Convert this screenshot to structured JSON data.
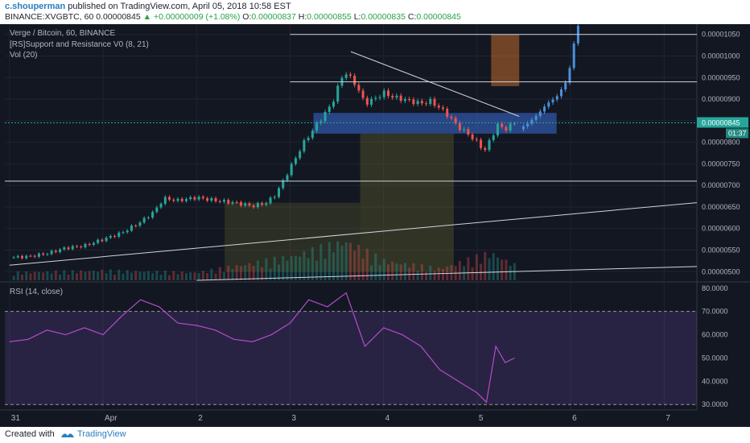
{
  "header": {
    "author": "c.shouperman",
    "published_text": "published on TradingView.com, April 05, 2018 10:58 EST",
    "symbol": "BINANCE:XVGBTC, 60",
    "last": "0.00000845",
    "change": "+0.00000009 (+1.08%)",
    "o_label": "O:",
    "o": "0.00000837",
    "h_label": "H:",
    "h": "0.00000855",
    "l_label": "L:",
    "l": "0.00000835",
    "c_label": "C:",
    "c": "0.00000845"
  },
  "legend": {
    "title": "Verge / Bitcoin, 60, BINANCE",
    "indicator": "[RS]Support and Resistance V0 (8, 21)",
    "volume": "Vol (20)",
    "rsi": "RSI (14, close)"
  },
  "price_label": {
    "value": "0.00000845",
    "countdown": "01:37"
  },
  "footer": {
    "created_with": "Created with",
    "brand": "TradingView"
  },
  "colors": {
    "background": "#131722",
    "up": "#26a69a",
    "down": "#ef5350",
    "forecast": "#4a90d9",
    "rsi_line": "#b34cc9",
    "sr_zone": "#3b6bd6"
  },
  "chart_data": [
    {
      "type": "candlestick",
      "title": "Verge / Bitcoin, 60, BINANCE",
      "ylim": [
        4.8e-06,
        1.07e-05
      ],
      "y_ticks": [
        "0.00001050",
        "0.00001000",
        "0.00000950",
        "0.00000900",
        "0.00000850",
        "0.00000800",
        "0.00000750",
        "0.00000700",
        "0.00000650",
        "0.00000600",
        "0.00000550",
        "0.00000500"
      ],
      "x_ticks": [
        "31",
        "Apr",
        "2",
        "3",
        "4",
        "5",
        "6",
        "7"
      ],
      "x_days": [
        0,
        1,
        2,
        3,
        4,
        5,
        6,
        7
      ],
      "xlim": [
        -0.05,
        7.35
      ],
      "close_path": [
        [
          0.0,
          5.33e-06
        ],
        [
          0.2,
          5.35e-06
        ],
        [
          0.4,
          5.42e-06
        ],
        [
          0.6,
          5.55e-06
        ],
        [
          0.8,
          5.6e-06
        ],
        [
          1.0,
          5.75e-06
        ],
        [
          1.2,
          5.9e-06
        ],
        [
          1.4,
          6.15e-06
        ],
        [
          1.55,
          6.4e-06
        ],
        [
          1.65,
          6.7e-06
        ],
        [
          1.8,
          6.65e-06
        ],
        [
          2.0,
          6.72e-06
        ],
        [
          2.2,
          6.65e-06
        ],
        [
          2.4,
          6.6e-06
        ],
        [
          2.6,
          6.52e-06
        ],
        [
          2.75,
          6.6e-06
        ],
        [
          2.85,
          6.8e-06
        ],
        [
          2.95,
          7.2e-06
        ],
        [
          3.05,
          7.6e-06
        ],
        [
          3.15,
          8e-06
        ],
        [
          3.25,
          8.3e-06
        ],
        [
          3.35,
          8.6e-06
        ],
        [
          3.45,
          8.9e-06
        ],
        [
          3.55,
          9.5e-06
        ],
        [
          3.6,
          9.6e-06
        ],
        [
          3.7,
          9.35e-06
        ],
        [
          3.8,
          8.9e-06
        ],
        [
          3.9,
          9e-06
        ],
        [
          4.0,
          9.15e-06
        ],
        [
          4.1,
          9.05e-06
        ],
        [
          4.2,
          9e-06
        ],
        [
          4.3,
          8.95e-06
        ],
        [
          4.4,
          8.9e-06
        ],
        [
          4.5,
          8.95e-06
        ],
        [
          4.6,
          8.8e-06
        ],
        [
          4.7,
          8.6e-06
        ],
        [
          4.8,
          8.35e-06
        ],
        [
          4.9,
          8.2e-06
        ],
        [
          5.0,
          8e-06
        ],
        [
          5.08,
          7.8e-06
        ],
        [
          5.15,
          8.1e-06
        ],
        [
          5.22,
          8.4e-06
        ],
        [
          5.3,
          8.3e-06
        ],
        [
          5.4,
          8.45e-06
        ]
      ],
      "forecast_path": [
        [
          5.45,
          8.3e-06
        ],
        [
          5.55,
          8.45e-06
        ],
        [
          5.65,
          8.65e-06
        ],
        [
          5.75,
          8.9e-06
        ],
        [
          5.85,
          9.05e-06
        ],
        [
          5.95,
          9.4e-06
        ],
        [
          6.0,
          9.8e-06
        ],
        [
          6.05,
          1.05e-05
        ],
        [
          6.08,
          1.07e-05
        ]
      ],
      "horizontal_levels": [
        1.05e-05,
        9.4e-06,
        7.1e-06
      ],
      "sr_zone": [
        8.2e-06,
        8.68e-06
      ],
      "trend_lines": [
        {
          "from": [
            3.65,
            1.01e-05
          ],
          "to": [
            5.45,
            8.6e-06
          ]
        },
        {
          "from": [
            0.0,
            5.15e-06
          ],
          "to": [
            7.35,
            6.6e-06
          ]
        },
        {
          "from": [
            2.0,
            4.8e-06
          ],
          "to": [
            7.35,
            5.12e-06
          ]
        }
      ],
      "volume_path": [
        [
          0.0,
          0.2
        ],
        [
          1.0,
          0.25
        ],
        [
          2.0,
          0.2
        ],
        [
          3.0,
          0.6
        ],
        [
          3.6,
          1.0
        ],
        [
          4.0,
          0.5
        ],
        [
          4.6,
          0.3
        ],
        [
          5.15,
          0.7
        ],
        [
          5.4,
          0.4
        ]
      ]
    },
    {
      "type": "line",
      "title": "RSI (14, close)",
      "ylim": [
        28,
        82
      ],
      "y_ticks": [
        "80.0000",
        "70.0000",
        "60.0000",
        "50.0000",
        "40.0000",
        "30.0000"
      ],
      "reference_lines": [
        70,
        30
      ],
      "x": [
        0.0,
        0.2,
        0.4,
        0.6,
        0.8,
        1.0,
        1.2,
        1.4,
        1.6,
        1.8,
        2.0,
        2.2,
        2.4,
        2.6,
        2.8,
        3.0,
        3.2,
        3.4,
        3.6,
        3.8,
        4.0,
        4.2,
        4.4,
        4.6,
        4.8,
        5.0,
        5.1,
        5.2,
        5.3,
        5.4
      ],
      "values": [
        57,
        58,
        62,
        60,
        63,
        60,
        68,
        75,
        72,
        65,
        64,
        62,
        58,
        57,
        60,
        65,
        75,
        72,
        78,
        55,
        63,
        60,
        55,
        45,
        40,
        35,
        31,
        55,
        48,
        50
      ]
    }
  ]
}
